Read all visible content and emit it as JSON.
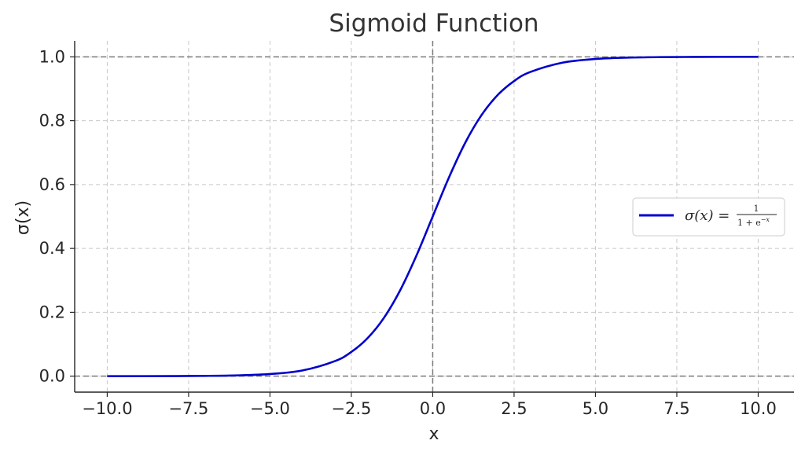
{
  "chart_data": {
    "type": "line",
    "title": "Sigmoid Function",
    "xlabel": "x",
    "ylabel": "σ(x)",
    "xlim": [
      -11,
      11.1
    ],
    "ylim": [
      -0.05,
      1.05
    ],
    "xticks": [
      -10,
      -7.5,
      -5,
      -2.5,
      0,
      2.5,
      5,
      7.5,
      10
    ],
    "xtick_labels": [
      "−10.0",
      "−7.5",
      "−5.0",
      "−2.5",
      "0.0",
      "2.5",
      "5.0",
      "7.5",
      "10.0"
    ],
    "yticks": [
      0,
      0.2,
      0.4,
      0.6,
      0.8,
      1.0
    ],
    "ytick_labels": [
      "0.0",
      "0.2",
      "0.4",
      "0.6",
      "0.8",
      "1.0"
    ],
    "grid": true,
    "reference_lines": {
      "horizontal": [
        0,
        1
      ],
      "vertical": [
        0
      ]
    },
    "legend_position": "center-right",
    "series": [
      {
        "name": "σ(x) = 1 / (1 + e^−x)",
        "color": "#0000cc",
        "x": [
          -10,
          -9,
          -8,
          -7,
          -6,
          -5,
          -4,
          -3,
          -2.5,
          -2,
          -1.5,
          -1,
          -0.5,
          0,
          0.5,
          1,
          1.5,
          2,
          2.5,
          3,
          4,
          5,
          6,
          7,
          8,
          9,
          10
        ],
        "y": [
          5e-05,
          0.00012,
          0.00034,
          0.00091,
          0.00247,
          0.00669,
          0.01799,
          0.04743,
          0.07586,
          0.1192,
          0.18243,
          0.26894,
          0.37754,
          0.5,
          0.62246,
          0.73106,
          0.81757,
          0.8808,
          0.92414,
          0.95257,
          0.98201,
          0.99331,
          0.99753,
          0.99909,
          0.99966,
          0.99988,
          0.99995
        ]
      }
    ],
    "legend": {
      "sigma_x": "σ(x) =",
      "numerator": "1",
      "denominator_base": "1 + e",
      "denominator_exp": "−x"
    }
  }
}
